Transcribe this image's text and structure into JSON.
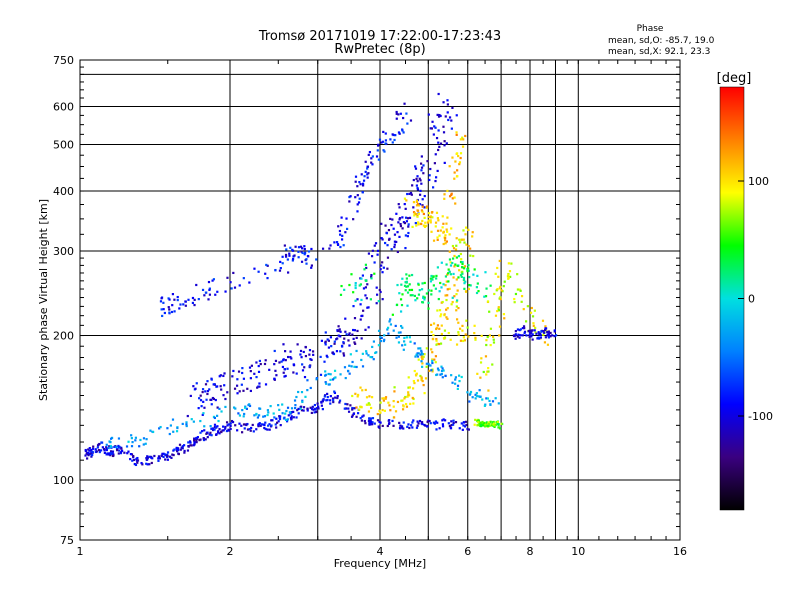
{
  "chart_data": {
    "type": "scatter",
    "title": "Tromsø 20171019 17:22:00-17:23:43",
    "subtitle": "RwPretec (8p)",
    "xlabel": "Frequency [MHz]",
    "ylabel": "Stationary phase Virtual Height [km]",
    "x_scale": "log",
    "y_scale": "log",
    "xlim": [
      1,
      16
    ],
    "ylim": [
      75,
      750
    ],
    "x_ticks": [
      1,
      2,
      4,
      6,
      8,
      10,
      16
    ],
    "x_ticks_minor": [
      3,
      5,
      7,
      9
    ],
    "y_ticks": [
      75,
      100,
      200,
      300,
      400,
      500,
      600,
      750
    ],
    "y_ticks_minor": [
      700
    ],
    "grid": true,
    "stats": {
      "header": "Phase",
      "line_o": "mean, sd,O: -85.7, 19.0",
      "line_x": "mean, sd,X:  92.1, 23.3"
    },
    "colorbar": {
      "label": "[deg]",
      "range": [
        -180,
        180
      ],
      "ticks": [
        100,
        0,
        -100
      ],
      "colors": [
        "#000000",
        "#3a0080",
        "#0000ff",
        "#0080ff",
        "#00e0e0",
        "#00ff00",
        "#ffff00",
        "#ff8000",
        "#ff0000"
      ]
    },
    "series": [
      {
        "values": [
          [
            1.02,
            112
          ],
          [
            1.05,
            115
          ],
          [
            1.1,
            118
          ],
          [
            1.15,
            114
          ],
          [
            1.2,
            116
          ],
          [
            1.3,
            110
          ],
          [
            1.4,
            110
          ],
          [
            1.5,
            112
          ],
          [
            1.6,
            116
          ],
          [
            1.7,
            120
          ],
          [
            1.8,
            125
          ],
          [
            1.9,
            128
          ],
          [
            2.0,
            130
          ],
          [
            2.2,
            128
          ],
          [
            2.4,
            130
          ],
          [
            2.6,
            135
          ],
          [
            2.8,
            140
          ],
          [
            3.0,
            142
          ],
          [
            3.2,
            150
          ],
          [
            3.5,
            140
          ],
          [
            3.8,
            132
          ],
          [
            4.0,
            131
          ],
          [
            4.5,
            131
          ],
          [
            5.0,
            130
          ],
          [
            5.5,
            131
          ],
          [
            6.0,
            130
          ]
        ],
        "phase": -100,
        "spread": 0.03
      },
      {
        "values": [
          [
            1.7,
            145
          ],
          [
            1.8,
            150
          ],
          [
            1.9,
            155
          ],
          [
            2.1,
            160
          ],
          [
            2.3,
            165
          ],
          [
            2.5,
            175
          ],
          [
            2.7,
            180
          ],
          [
            2.9,
            175
          ],
          [
            3.1,
            190
          ],
          [
            3.3,
            195
          ],
          [
            3.5,
            200
          ],
          [
            3.7,
            230
          ],
          [
            3.9,
            260
          ],
          [
            4.1,
            300
          ],
          [
            4.3,
            330
          ],
          [
            4.5,
            350
          ],
          [
            4.7,
            380
          ],
          [
            4.9,
            420
          ],
          [
            5.1,
            470
          ],
          [
            5.3,
            560
          ],
          [
            5.5,
            620
          ]
        ],
        "phase": -100,
        "spread": 0.1
      },
      {
        "values": [
          [
            2.5,
            280
          ],
          [
            2.7,
            300
          ],
          [
            2.9,
            290
          ],
          [
            1.45,
            228
          ],
          [
            1.55,
            232
          ],
          [
            1.9,
            255
          ],
          [
            3.2,
            300
          ],
          [
            3.5,
            360
          ],
          [
            3.7,
            420
          ],
          [
            3.9,
            480
          ],
          [
            4.2,
            520
          ],
          [
            4.6,
            600
          ]
        ],
        "phase": -90,
        "spread": 0.06
      },
      {
        "values": [
          [
            3.6,
            150
          ],
          [
            3.9,
            145
          ],
          [
            4.2,
            140
          ],
          [
            4.5,
            150
          ],
          [
            4.8,
            160
          ],
          [
            5.0,
            180
          ],
          [
            5.2,
            200
          ],
          [
            5.4,
            220
          ],
          [
            5.6,
            250
          ],
          [
            5.8,
            300
          ],
          [
            6.0,
            330
          ],
          [
            5.7,
            200
          ],
          [
            6.2,
            200
          ]
        ],
        "phase": 100,
        "spread": 0.08
      },
      {
        "values": [
          [
            4.6,
            380
          ],
          [
            4.8,
            350
          ],
          [
            5.0,
            360
          ],
          [
            5.2,
            330
          ],
          [
            5.4,
            320
          ],
          [
            5.6,
            440
          ],
          [
            5.8,
            520
          ]
        ],
        "phase": 110,
        "spread": 0.06
      },
      {
        "values": [
          [
            6.2,
            132
          ],
          [
            6.4,
            131
          ],
          [
            6.6,
            131
          ],
          [
            6.8,
            131
          ],
          [
            7.0,
            130
          ]
        ],
        "phase": 60,
        "spread": 0.02
      },
      {
        "values": [
          [
            6.4,
            160
          ],
          [
            6.7,
            200
          ],
          [
            6.9,
            240
          ],
          [
            7.1,
            280
          ],
          [
            8.0,
            220
          ],
          [
            8.5,
            200
          ]
        ],
        "phase": 90,
        "spread": 0.08
      },
      {
        "values": [
          [
            7.4,
            200
          ],
          [
            7.8,
            205
          ],
          [
            8.2,
            200
          ],
          [
            8.6,
            203
          ],
          [
            9.0,
            202
          ]
        ],
        "phase": -100,
        "spread": 0.03
      },
      {
        "values": [
          [
            1.1,
            120
          ],
          [
            1.3,
            122
          ],
          [
            1.6,
            130
          ],
          [
            2.0,
            138
          ],
          [
            2.3,
            140
          ],
          [
            2.6,
            138
          ],
          [
            3.0,
            160
          ],
          [
            3.4,
            170
          ],
          [
            3.8,
            185
          ],
          [
            4.2,
            210
          ],
          [
            4.6,
            190
          ],
          [
            5.0,
            175
          ],
          [
            5.5,
            165
          ],
          [
            6.2,
            150
          ],
          [
            6.8,
            145
          ]
        ],
        "phase": -30,
        "spread": 0.05
      },
      {
        "values": [
          [
            4.3,
            230
          ],
          [
            4.6,
            260
          ],
          [
            4.9,
            240
          ],
          [
            5.2,
            260
          ],
          [
            5.6,
            280
          ],
          [
            6.0,
            270
          ],
          [
            6.5,
            250
          ],
          [
            3.4,
            240
          ],
          [
            3.8,
            270
          ]
        ],
        "phase": 20,
        "spread": 0.07
      }
    ]
  }
}
